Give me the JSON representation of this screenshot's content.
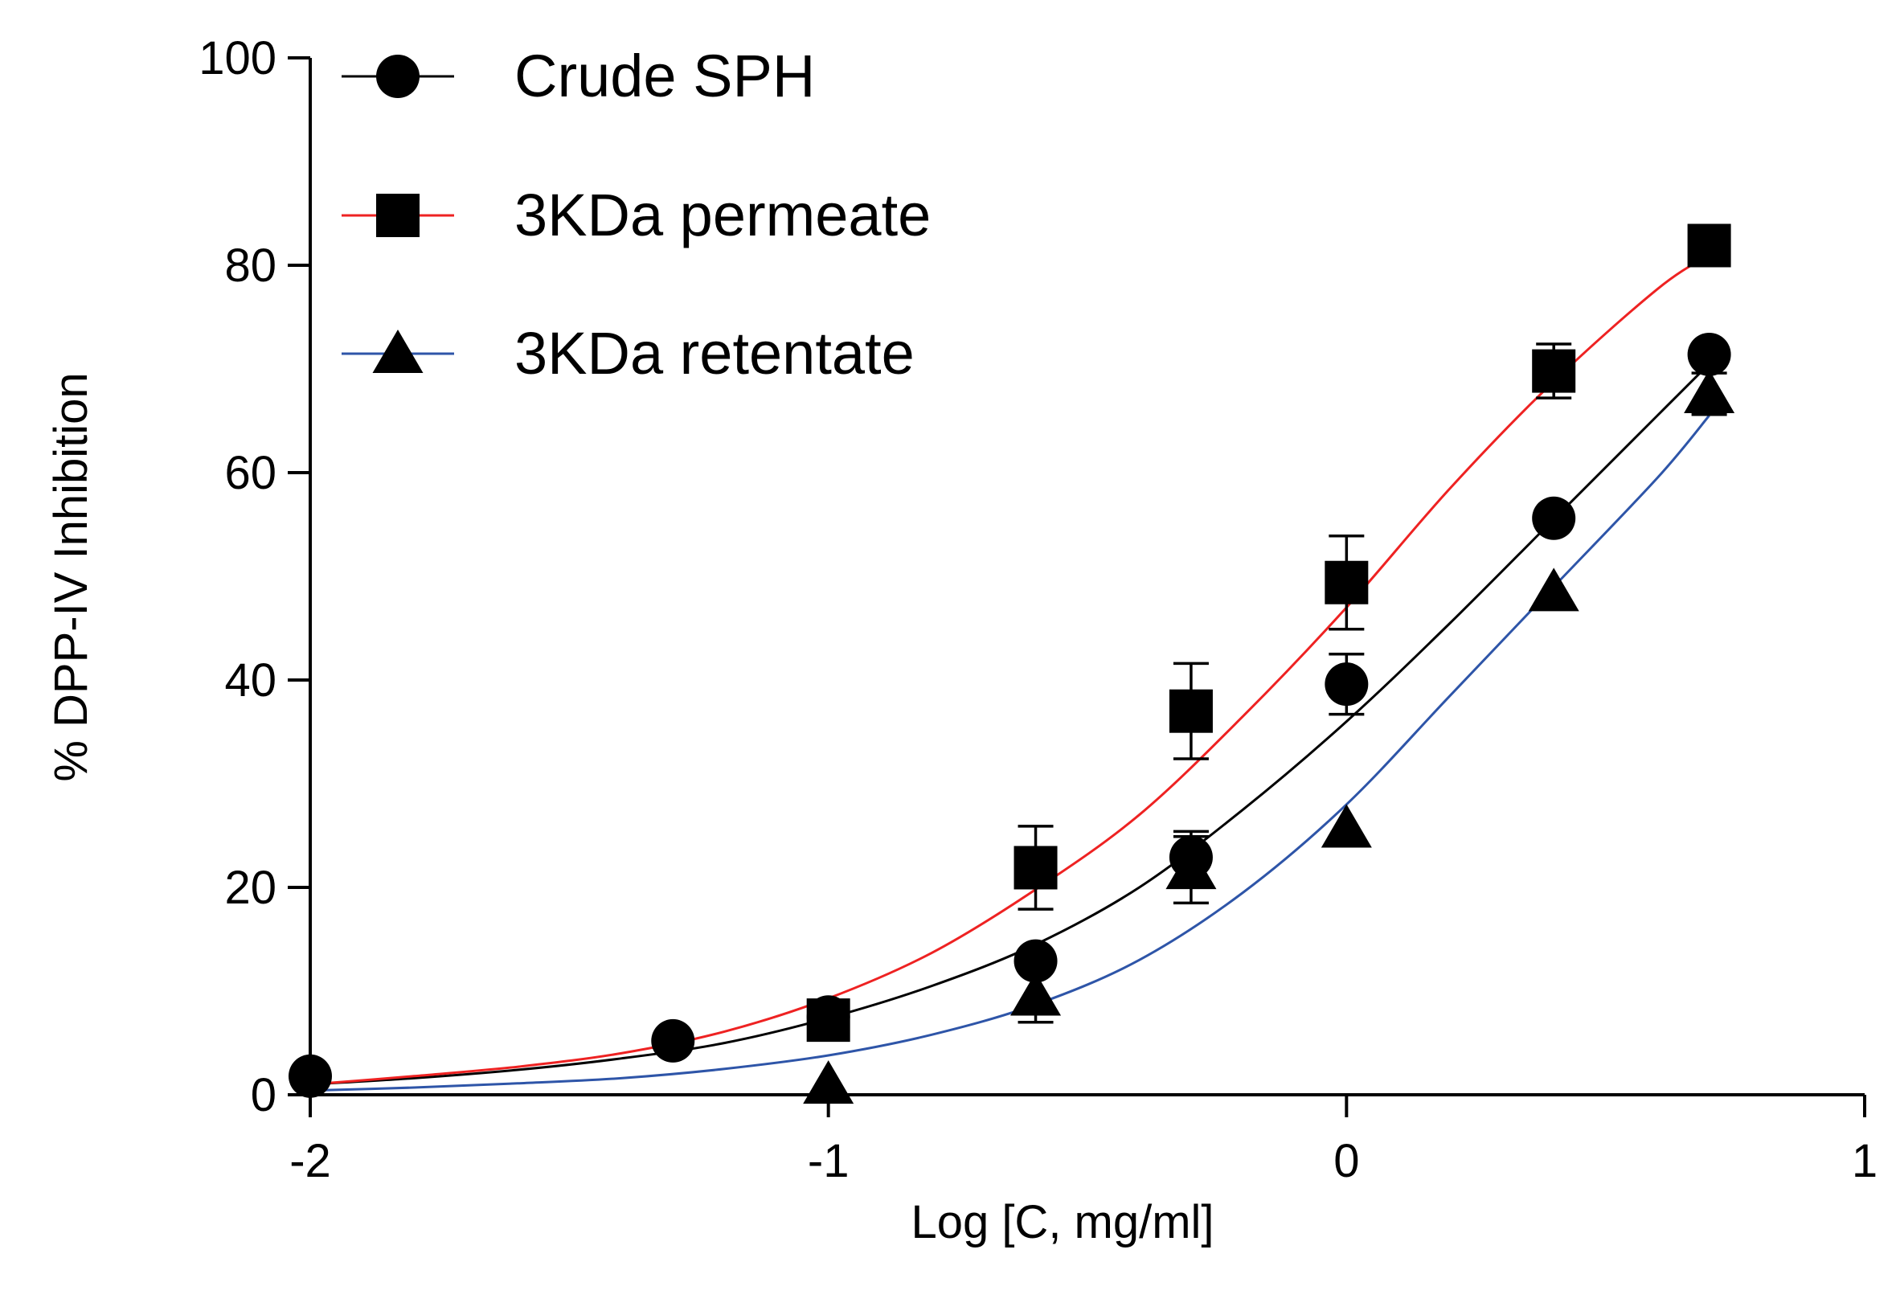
{
  "chart_data": {
    "type": "scatter",
    "title": "",
    "xlabel": "Log [C, mg/ml]",
    "ylabel": "% DPP-IV Inhibition",
    "xlim": [
      -2,
      1
    ],
    "ylim": [
      0,
      100
    ],
    "x_ticks": [
      -2,
      -1,
      0,
      1
    ],
    "x_tick_labels": [
      "-2",
      "-1",
      "0",
      "1"
    ],
    "y_ticks": [
      0,
      20,
      40,
      60,
      80,
      100
    ],
    "y_tick_labels": [
      "0",
      "20",
      "40",
      "60",
      "80",
      "100"
    ],
    "grid": false,
    "legend_position": "top-left",
    "series": [
      {
        "name": "Crude SPH",
        "marker": "circle",
        "line_color": "#000000",
        "x": [
          -2.0,
          -1.3,
          -1.0,
          -0.6,
          -0.3,
          0.0,
          0.4,
          0.7
        ],
        "y": [
          1.8,
          5.2,
          7.5,
          12.9,
          22.9,
          39.6,
          55.6,
          71.4
        ],
        "err": [
          0.5,
          0.6,
          0.8,
          1.0,
          2.5,
          2.9,
          1.0,
          1.0
        ],
        "fit_x": [
          -2.0,
          -1.8,
          -1.6,
          -1.4,
          -1.2,
          -1.0,
          -0.8,
          -0.6,
          -0.4,
          -0.2,
          0.0,
          0.2,
          0.4,
          0.6,
          0.7
        ],
        "fit_y": [
          1.0,
          1.6,
          2.4,
          3.5,
          5.0,
          7.4,
          10.5,
          14.5,
          20.0,
          27.5,
          36.0,
          45.5,
          55.5,
          65.5,
          70.5
        ]
      },
      {
        "name": "3KDa permeate",
        "marker": "square",
        "line_color": "#ee2222",
        "x": [
          -1.0,
          -0.6,
          -0.3,
          0.0,
          0.4,
          0.7
        ],
        "y": [
          7.2,
          21.9,
          37.0,
          49.4,
          69.8,
          81.9
        ],
        "err": [
          0.8,
          4.0,
          4.6,
          4.5,
          2.6,
          1.0
        ],
        "fit_x": [
          -2.0,
          -1.8,
          -1.6,
          -1.4,
          -1.2,
          -1.0,
          -0.8,
          -0.6,
          -0.4,
          -0.2,
          0.0,
          0.2,
          0.4,
          0.6,
          0.7
        ],
        "fit_y": [
          1.0,
          1.8,
          2.7,
          4.0,
          6.1,
          9.3,
          13.7,
          19.8,
          27.0,
          36.5,
          47.0,
          58.5,
          68.8,
          77.7,
          81.0
        ]
      },
      {
        "name": "3KDa retentate",
        "marker": "triangle",
        "line_color": "#2e55a8",
        "x": [
          -1.0,
          -0.6,
          -0.3,
          0.0,
          0.4,
          0.7
        ],
        "y": [
          1.0,
          9.5,
          21.7,
          25.7,
          48.5,
          67.6
        ],
        "err": [
          0.3,
          2.5,
          3.2,
          0.8,
          0.8,
          2.0
        ],
        "fit_x": [
          -2.0,
          -1.8,
          -1.6,
          -1.4,
          -1.2,
          -1.0,
          -0.8,
          -0.6,
          -0.4,
          -0.2,
          0.0,
          0.2,
          0.4,
          0.6,
          0.7
        ],
        "fit_y": [
          0.4,
          0.7,
          1.1,
          1.6,
          2.5,
          3.8,
          5.8,
          8.7,
          13.0,
          19.5,
          28.0,
          38.5,
          49.0,
          59.5,
          65.5
        ]
      }
    ]
  }
}
